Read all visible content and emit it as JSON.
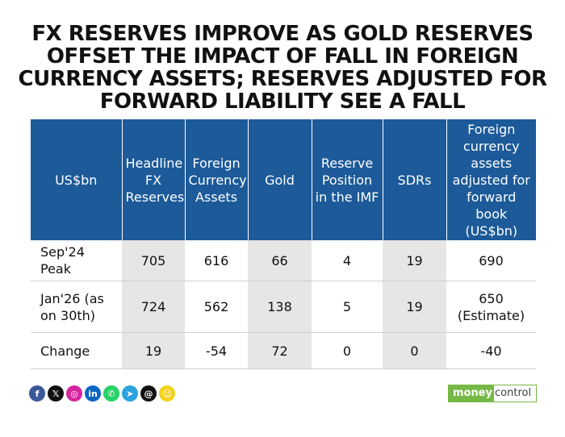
{
  "title": "FX RESERVES IMPROVE AS GOLD RESERVES OFFSET THE IMPACT OF FALL IN FOREIGN CURRENCY ASSETS; RESERVES ADJUSTED FOR FORWARD LIABILITY SEE A FALL",
  "table": {
    "headers": [
      "US$bn",
      "Headline FX Reserves",
      "Foreign Currency Assets",
      "Gold",
      "Reserve Position in the IMF",
      "SDRs",
      "Foreign currency assets adjusted for forward book (US$bn)"
    ],
    "rows": [
      [
        "Sep'24 Peak",
        "705",
        "616",
        "66",
        "4",
        "19",
        "690"
      ],
      [
        "Jan'26 (as on 30th)",
        "724",
        "562",
        "138",
        "5",
        "19",
        "650 (Estimate)"
      ],
      [
        "Change",
        "19",
        "-54",
        "72",
        "0",
        "0",
        "-40"
      ]
    ]
  },
  "social_icons": [
    {
      "name": "facebook",
      "glyph": "f",
      "color": "#3b5998"
    },
    {
      "name": "x",
      "glyph": "𝕏",
      "color": "#111111"
    },
    {
      "name": "instagram",
      "glyph": "◎",
      "color": "#d6249f"
    },
    {
      "name": "linkedin",
      "glyph": "in",
      "color": "#0a66c2"
    },
    {
      "name": "whatsapp",
      "glyph": "✆",
      "color": "#25d366"
    },
    {
      "name": "telegram",
      "glyph": "➤",
      "color": "#2aa3df"
    },
    {
      "name": "threads",
      "glyph": "@",
      "color": "#111111"
    },
    {
      "name": "snapchat",
      "glyph": "☺",
      "color": "#f3d21b"
    }
  ],
  "brand": {
    "part1": "money",
    "part2": "control"
  },
  "colors": {
    "header_bg": "#1c5a99",
    "shade": "#e6e6e6",
    "brand_green": "#76b845"
  }
}
